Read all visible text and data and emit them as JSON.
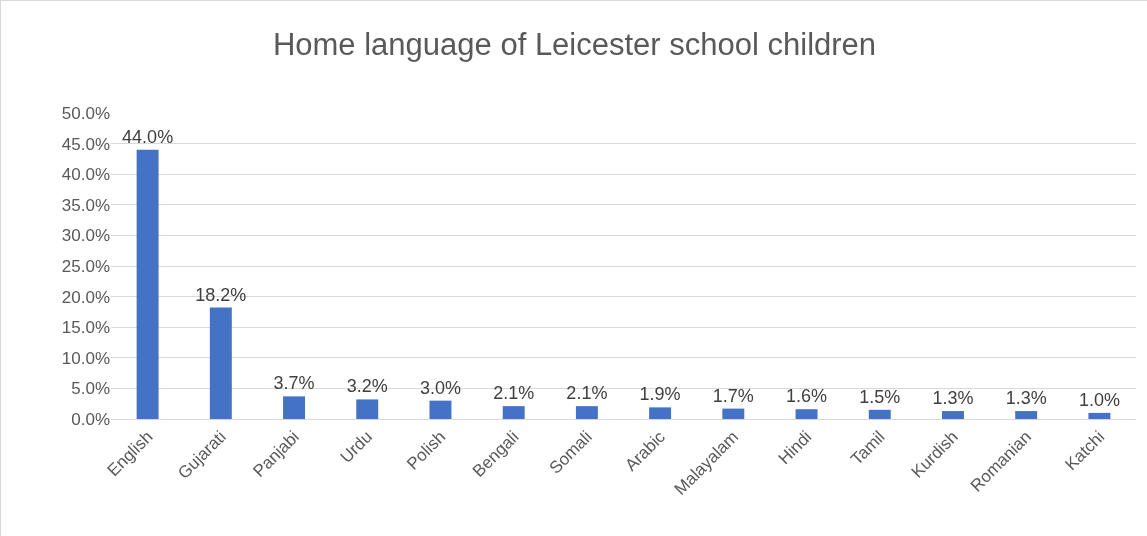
{
  "chart_data": {
    "type": "bar",
    "title": "Home language of Leicester school children",
    "categories": [
      "English",
      "Gujarati",
      "Panjabi",
      "Urdu",
      "Polish",
      "Bengali",
      "Somali",
      "Arabic",
      "Malayalam",
      "Hindi",
      "Tamil",
      "Kurdish",
      "Romanian",
      "Katchi"
    ],
    "values": [
      44.0,
      18.2,
      3.7,
      3.2,
      3.0,
      2.1,
      2.1,
      1.9,
      1.7,
      1.6,
      1.5,
      1.3,
      1.3,
      1.0
    ],
    "value_labels": [
      "44.0%",
      "18.2%",
      "3.7%",
      "3.2%",
      "3.0%",
      "2.1%",
      "2.1%",
      "1.9%",
      "1.7%",
      "1.6%",
      "1.5%",
      "1.3%",
      "1.3%",
      "1.0%"
    ],
    "color": "#4472c4",
    "ylim": [
      0,
      50
    ],
    "yticks": [
      {
        "value": 0,
        "label": "0.0%"
      },
      {
        "value": 5,
        "label": "5.0%"
      },
      {
        "value": 10,
        "label": "10.0%"
      },
      {
        "value": 15,
        "label": "15.0%"
      },
      {
        "value": 20,
        "label": "20.0%"
      },
      {
        "value": 25,
        "label": "25.0%"
      },
      {
        "value": 30,
        "label": "30.0%"
      },
      {
        "value": 35,
        "label": "35.0%"
      },
      {
        "value": 40,
        "label": "40.0%"
      },
      {
        "value": 45,
        "label": "45.0%"
      },
      {
        "value": 50,
        "label": "50.0%"
      }
    ],
    "grid": "y"
  }
}
